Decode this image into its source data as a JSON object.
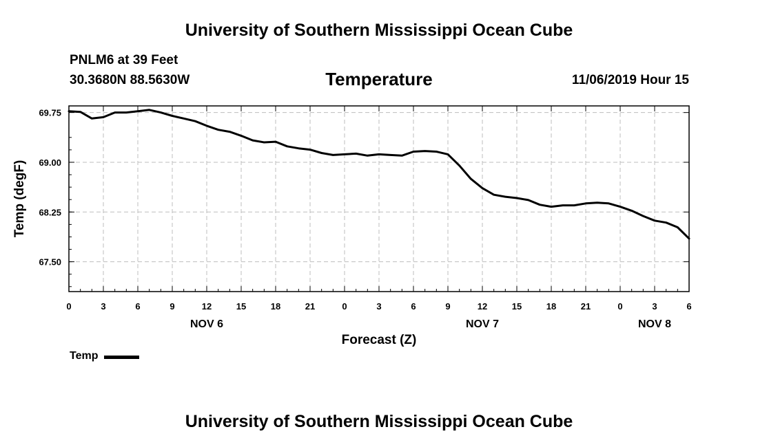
{
  "header": {
    "title": "University of Southern Mississippi Ocean Cube",
    "station": "PNLM6 at 39 Feet",
    "coords": "30.3680N 88.5630W",
    "datetime": "11/06/2019 Hour 15"
  },
  "footer": {
    "title": "University of Southern Mississippi Ocean Cube"
  },
  "chart_data": {
    "type": "line",
    "title": "Temperature",
    "xlabel": "Forecast (Z)",
    "ylabel": "Temp (degF)",
    "xlim": [
      0,
      54
    ],
    "ylim": [
      67.05,
      69.85
    ],
    "grid": true,
    "legend": {
      "position": "bottom-left",
      "entries": [
        "Temp"
      ]
    },
    "x_tick_values": [
      0,
      3,
      6,
      9,
      12,
      15,
      18,
      21,
      24,
      27,
      30,
      33,
      36,
      39,
      42,
      45,
      48,
      51,
      54
    ],
    "x_tick_labels": [
      "0",
      "3",
      "6",
      "9",
      "12",
      "15",
      "18",
      "21",
      "0",
      "3",
      "6",
      "9",
      "12",
      "15",
      "18",
      "21",
      "0",
      "3",
      "6"
    ],
    "x_day_labels": [
      {
        "x": 12,
        "label": "NOV 6"
      },
      {
        "x": 36,
        "label": "NOV 7"
      },
      {
        "x": 51,
        "label": "NOV 8"
      }
    ],
    "y_tick_values": [
      69.75,
      69.0,
      68.25,
      67.5
    ],
    "y_tick_labels": [
      "69.75",
      "69.00",
      "68.25",
      "67.50"
    ],
    "series": [
      {
        "name": "Temp",
        "color": "#000000",
        "x": [
          0,
          1,
          2,
          3,
          4,
          5,
          6,
          7,
          8,
          9,
          10,
          11,
          12,
          13,
          14,
          15,
          16,
          17,
          18,
          19,
          20,
          21,
          22,
          23,
          24,
          25,
          26,
          27,
          28,
          29,
          30,
          31,
          32,
          33,
          34,
          35,
          36,
          37,
          38,
          39,
          40,
          41,
          42,
          43,
          44,
          45,
          46,
          47,
          48,
          49,
          50,
          51,
          52,
          53,
          54
        ],
        "values": [
          69.77,
          69.76,
          69.66,
          69.68,
          69.75,
          69.75,
          69.77,
          69.79,
          69.75,
          69.7,
          69.66,
          69.62,
          69.55,
          69.49,
          69.46,
          69.4,
          69.33,
          69.3,
          69.31,
          69.24,
          69.21,
          69.19,
          69.14,
          69.11,
          69.12,
          69.13,
          69.1,
          69.12,
          69.11,
          69.1,
          69.16,
          69.17,
          69.16,
          69.12,
          68.95,
          68.75,
          68.61,
          68.51,
          68.48,
          68.46,
          68.43,
          68.36,
          68.33,
          68.35,
          68.35,
          68.38,
          68.39,
          68.38,
          68.33,
          68.27,
          68.19,
          68.12,
          68.09,
          68.02,
          67.85
        ]
      }
    ]
  }
}
